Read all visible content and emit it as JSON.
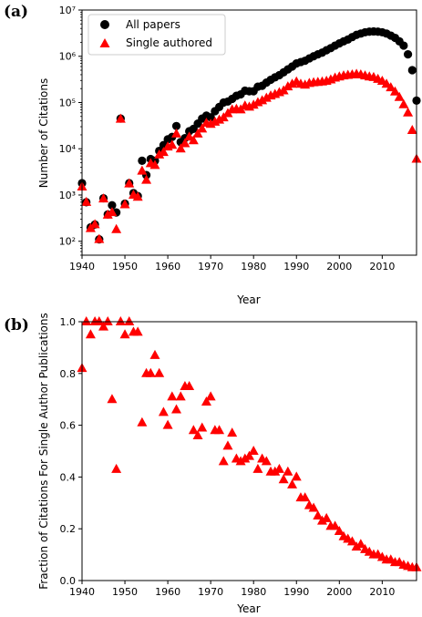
{
  "chart_data": [
    {
      "panel_label": "(a)",
      "type": "scatter",
      "xlabel": "Year",
      "ylabel": "Number of Citations",
      "xlim": [
        1940,
        2018
      ],
      "ylim": [
        50,
        10000000
      ],
      "yscale": "log",
      "xticks": [
        "1940",
        "1950",
        "1960",
        "1970",
        "1980",
        "1990",
        "2000",
        "2010"
      ],
      "yticks": [
        "10²",
        "10³",
        "10⁴",
        "10⁵",
        "10⁶",
        "10⁷"
      ],
      "legend_position": "upper-left",
      "series": [
        {
          "name": "All papers",
          "marker": "circle",
          "color": "#000000",
          "x": [
            1940,
            1941,
            1942,
            1943,
            1944,
            1945,
            1946,
            1947,
            1948,
            1949,
            1950,
            1951,
            1952,
            1953,
            1954,
            1955,
            1956,
            1957,
            1958,
            1959,
            1960,
            1961,
            1962,
            1963,
            1964,
            1965,
            1966,
            1967,
            1968,
            1969,
            1970,
            1971,
            1972,
            1973,
            1974,
            1975,
            1976,
            1977,
            1978,
            1979,
            1980,
            1981,
            1982,
            1983,
            1984,
            1985,
            1986,
            1987,
            1988,
            1989,
            1990,
            1991,
            1992,
            1993,
            1994,
            1995,
            1996,
            1997,
            1998,
            1999,
            2000,
            2001,
            2002,
            2003,
            2004,
            2005,
            2006,
            2007,
            2008,
            2009,
            2010,
            2011,
            2012,
            2013,
            2014,
            2015,
            2016,
            2017,
            2018
          ],
          "y": [
            1800,
            700,
            200,
            230,
            110,
            850,
            380,
            600,
            420,
            45000,
            650,
            1800,
            1100,
            950,
            5500,
            2700,
            6000,
            5500,
            9000,
            12000,
            16000,
            18000,
            31000,
            14000,
            17000,
            24000,
            27000,
            35000,
            45000,
            52000,
            48000,
            65000,
            80000,
            100000,
            105000,
            120000,
            140000,
            150000,
            180000,
            175000,
            175000,
            220000,
            230000,
            270000,
            310000,
            350000,
            390000,
            450000,
            520000,
            600000,
            700000,
            750000,
            800000,
            900000,
            1000000,
            1100000,
            1200000,
            1350000,
            1500000,
            1700000,
            1900000,
            2100000,
            2300000,
            2600000,
            2900000,
            3100000,
            3300000,
            3400000,
            3450000,
            3400000,
            3300000,
            3100000,
            2800000,
            2500000,
            2100000,
            1700000,
            1100000,
            500000,
            110000
          ]
        },
        {
          "name": "Single authored",
          "marker": "triangle",
          "color": "#ff0000",
          "x": [
            1940,
            1941,
            1942,
            1943,
            1944,
            1945,
            1946,
            1947,
            1948,
            1949,
            1950,
            1951,
            1952,
            1953,
            1954,
            1955,
            1956,
            1957,
            1958,
            1959,
            1960,
            1961,
            1962,
            1963,
            1964,
            1965,
            1966,
            1967,
            1968,
            1969,
            1970,
            1971,
            1972,
            1973,
            1974,
            1975,
            1976,
            1977,
            1978,
            1979,
            1980,
            1981,
            1982,
            1983,
            1984,
            1985,
            1986,
            1987,
            1988,
            1989,
            1990,
            1991,
            1992,
            1993,
            1994,
            1995,
            1996,
            1997,
            1998,
            1999,
            2000,
            2001,
            2002,
            2003,
            2004,
            2005,
            2006,
            2007,
            2008,
            2009,
            2010,
            2011,
            2012,
            2013,
            2014,
            2015,
            2016,
            2017,
            2018
          ],
          "y": [
            1500,
            700,
            190,
            230,
            110,
            830,
            370,
            420,
            180,
            44000,
            620,
            1750,
            1000,
            900,
            3300,
            2100,
            4800,
            4400,
            7400,
            8400,
            11000,
            12000,
            21000,
            10000,
            13000,
            18000,
            15000,
            21000,
            27000,
            36000,
            34000,
            38000,
            42000,
            47000,
            58000,
            70000,
            72000,
            70000,
            85000,
            80000,
            88000,
            100000,
            110000,
            125000,
            140000,
            150000,
            165000,
            180000,
            220000,
            250000,
            280000,
            250000,
            240000,
            260000,
            270000,
            275000,
            280000,
            290000,
            310000,
            340000,
            360000,
            380000,
            390000,
            400000,
            410000,
            400000,
            380000,
            360000,
            350000,
            320000,
            290000,
            250000,
            210000,
            170000,
            130000,
            90000,
            60000,
            25000,
            6000
          ]
        }
      ]
    },
    {
      "panel_label": "(b)",
      "type": "scatter",
      "xlabel": "Year",
      "ylabel": "Fraction of Citations For Single Author Publications",
      "xlim": [
        1940,
        2018
      ],
      "ylim": [
        0.0,
        1.0
      ],
      "xticks": [
        "1940",
        "1950",
        "1960",
        "1970",
        "1980",
        "1990",
        "2000",
        "2010"
      ],
      "yticks": [
        "0.0",
        "0.2",
        "0.4",
        "0.6",
        "0.8",
        "1.0"
      ],
      "series": [
        {
          "marker": "triangle",
          "color": "#ff0000",
          "x": [
            1940,
            1941,
            1942,
            1943,
            1944,
            1945,
            1946,
            1947,
            1948,
            1949,
            1950,
            1951,
            1952,
            1953,
            1954,
            1955,
            1956,
            1957,
            1958,
            1959,
            1960,
            1961,
            1962,
            1963,
            1964,
            1965,
            1966,
            1967,
            1968,
            1969,
            1970,
            1971,
            1972,
            1973,
            1974,
            1975,
            1976,
            1977,
            1978,
            1979,
            1980,
            1981,
            1982,
            1983,
            1984,
            1985,
            1986,
            1987,
            1988,
            1989,
            1990,
            1991,
            1992,
            1993,
            1994,
            1995,
            1996,
            1997,
            1998,
            1999,
            2000,
            2001,
            2002,
            2003,
            2004,
            2005,
            2006,
            2007,
            2008,
            2009,
            2010,
            2011,
            2012,
            2013,
            2014,
            2015,
            2016,
            2017,
            2018
          ],
          "y": [
            0.82,
            1.0,
            0.95,
            1.0,
            1.0,
            0.98,
            1.0,
            0.7,
            0.43,
            1.0,
            0.95,
            1.0,
            0.96,
            0.96,
            0.61,
            0.8,
            0.8,
            0.87,
            0.8,
            0.65,
            0.6,
            0.71,
            0.66,
            0.71,
            0.75,
            0.75,
            0.58,
            0.56,
            0.59,
            0.69,
            0.71,
            0.58,
            0.58,
            0.46,
            0.52,
            0.57,
            0.47,
            0.46,
            0.47,
            0.48,
            0.5,
            0.43,
            0.47,
            0.46,
            0.42,
            0.42,
            0.43,
            0.39,
            0.42,
            0.37,
            0.4,
            0.32,
            0.32,
            0.29,
            0.28,
            0.25,
            0.23,
            0.24,
            0.21,
            0.21,
            0.19,
            0.17,
            0.16,
            0.15,
            0.13,
            0.14,
            0.12,
            0.11,
            0.1,
            0.1,
            0.09,
            0.08,
            0.08,
            0.07,
            0.07,
            0.06,
            0.055,
            0.05,
            0.05
          ]
        }
      ]
    }
  ]
}
